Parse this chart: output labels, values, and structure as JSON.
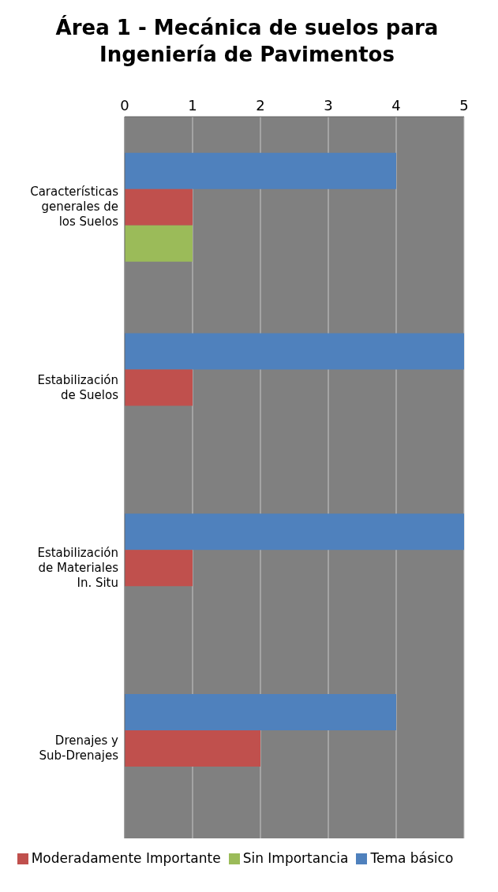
{
  "chart_data": {
    "type": "bar",
    "orientation": "horizontal",
    "title": "Área 1 - Mecánica de suelos para Ingeniería de Pavimentos",
    "categories": [
      "Características generales de los Suelos",
      "Estabilización de Suelos",
      "Estabilización de Materiales In. Situ",
      "Drenajes y Sub-Drenajes"
    ],
    "series": [
      {
        "name": "Tema básico",
        "color": "#4f81bd",
        "values": [
          4,
          5,
          5,
          4
        ]
      },
      {
        "name": "Moderadamente Importante",
        "color": "#c0504d",
        "values": [
          1,
          1,
          1,
          2
        ]
      },
      {
        "name": "Sin Importancia",
        "color": "#9bbb59",
        "values": [
          1,
          0,
          0,
          0
        ]
      }
    ],
    "xlim": [
      0,
      5
    ],
    "xticks": [
      0,
      1,
      2,
      3,
      4,
      5
    ],
    "grid": "x",
    "legend": "bottom"
  }
}
